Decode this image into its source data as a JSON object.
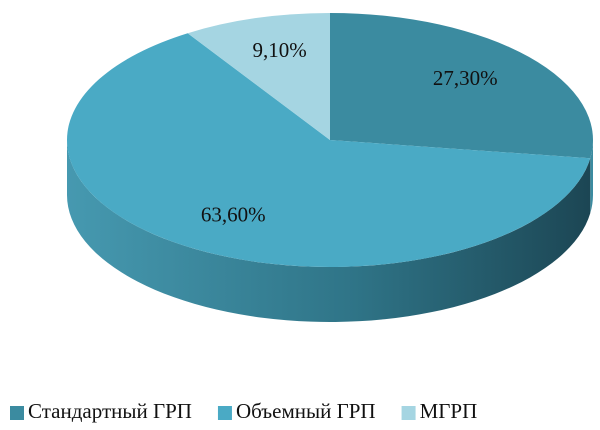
{
  "chart_data": {
    "type": "pie3d",
    "categories": [
      "Стандартный ГРП",
      "Объемный ГРП",
      "МГРП"
    ],
    "values": [
      27.3,
      63.6,
      9.1
    ],
    "value_labels": [
      "27,30%",
      "63,60%",
      "9,10%"
    ],
    "colors": [
      "#3b8ba0",
      "#4aaac5",
      "#a5d5e2"
    ],
    "legend": "bottom"
  }
}
